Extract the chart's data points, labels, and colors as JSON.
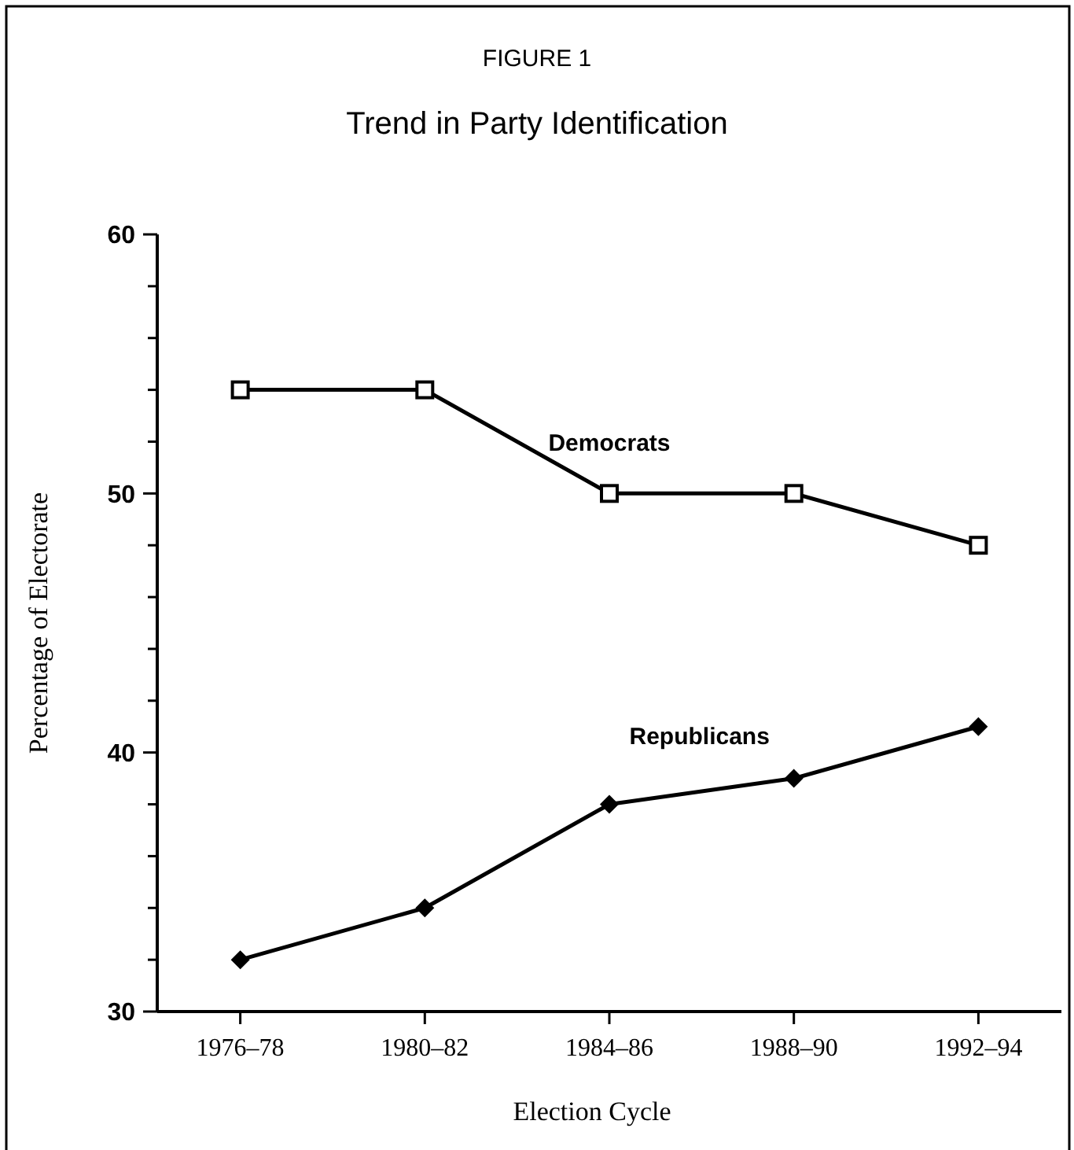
{
  "chart_data": {
    "type": "line",
    "title": "FIGURE 1",
    "subtitle": "Trend in Party Identification",
    "xlabel": "Election Cycle",
    "ylabel": "Percentage of Electorate",
    "categories": [
      "1976–78",
      "1980–82",
      "1984–86",
      "1988–90",
      "1992–94"
    ],
    "series": [
      {
        "name": "Democrats",
        "color": "#000000",
        "marker": "square",
        "values": [
          54,
          54,
          50,
          50,
          48
        ]
      },
      {
        "name": "Republicans",
        "color": "#000000",
        "marker": "diamond",
        "values": [
          32,
          34,
          38,
          39,
          41
        ]
      }
    ],
    "ylim": [
      30,
      60
    ],
    "yticks": [
      30,
      {
        "value": 32,
        "label": null
      },
      {
        "value": 34,
        "label": null
      },
      {
        "value": 36,
        "label": null
      },
      {
        "value": 38,
        "label": null
      },
      40,
      {
        "value": 42,
        "label": null
      },
      {
        "value": 44,
        "label": null
      },
      {
        "value": 46,
        "label": null
      },
      {
        "value": 48,
        "label": null
      },
      50,
      {
        "value": 52,
        "label": null
      },
      {
        "value": 54,
        "label": null
      },
      {
        "value": 56,
        "label": null
      },
      {
        "value": 58,
        "label": null
      },
      60
    ],
    "grid": false,
    "legend": false,
    "line_style": "solid"
  }
}
